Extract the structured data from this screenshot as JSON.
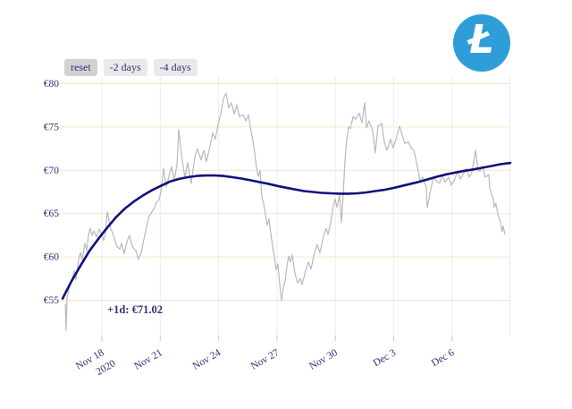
{
  "page": {
    "background": "#ffffff",
    "text_color": "#30307c"
  },
  "logo": {
    "symbol": "Ł",
    "bg_color": "#2f9ed8",
    "fg_color": "#ffffff"
  },
  "toolbar": {
    "buttons": [
      {
        "name": "reset",
        "label": "reset",
        "active": true
      },
      {
        "name": "back-2-days",
        "label": "-2 days",
        "active": false
      },
      {
        "name": "back-4-days",
        "label": "-4 days",
        "active": false
      }
    ]
  },
  "chart_data": {
    "type": "line",
    "title": "",
    "xlabel": "",
    "ylabel": "",
    "currency": "EUR",
    "annotation": "+1d: €71.02",
    "x_unit": "days since 2020-11-16",
    "ylim": [
      51,
      81
    ],
    "grid": {
      "h_color": "#fbe3ca",
      "v_color": "#ededed",
      "tick_color": "#c9c9c9"
    },
    "y_ticks": [
      {
        "value": 80,
        "label": "€80"
      },
      {
        "value": 75,
        "label": "€75"
      },
      {
        "value": 70,
        "label": "€70"
      },
      {
        "value": 65,
        "label": "€65"
      },
      {
        "value": 60,
        "label": "€60"
      },
      {
        "value": 55,
        "label": "€55"
      }
    ],
    "x_ticks": [
      {
        "day": 2,
        "label": "Nov 18",
        "sublabel": "2020"
      },
      {
        "day": 5,
        "label": "Nov 21"
      },
      {
        "day": 8,
        "label": "Nov 24"
      },
      {
        "day": 11,
        "label": "Nov 27"
      },
      {
        "day": 14,
        "label": "Nov 30"
      },
      {
        "day": 17,
        "label": "Dec 3"
      },
      {
        "day": 20,
        "label": "Dec 6"
      }
    ],
    "series": [
      {
        "name": "price",
        "color": "#b9b9b9",
        "width": 1.2,
        "points": [
          [
            0.12,
            54.5
          ],
          [
            0.16,
            51.5
          ],
          [
            0.21,
            55.3
          ],
          [
            0.35,
            56.7
          ],
          [
            0.48,
            57.6
          ],
          [
            0.58,
            58.4
          ],
          [
            0.67,
            57.4
          ],
          [
            0.81,
            59.8
          ],
          [
            0.9,
            60.5
          ],
          [
            0.99,
            59.7
          ],
          [
            1.13,
            61.6
          ],
          [
            1.22,
            60.7
          ],
          [
            1.31,
            62.5
          ],
          [
            1.4,
            63.3
          ],
          [
            1.49,
            62.5
          ],
          [
            1.59,
            63.0
          ],
          [
            1.72,
            62.3
          ],
          [
            1.86,
            63.2
          ],
          [
            2.0,
            62.6
          ],
          [
            2.09,
            61.9
          ],
          [
            2.18,
            62.7
          ],
          [
            2.28,
            65.2
          ],
          [
            2.37,
            64.2
          ],
          [
            2.46,
            63.2
          ],
          [
            2.55,
            62.8
          ],
          [
            2.69,
            61.8
          ],
          [
            2.78,
            61.2
          ],
          [
            2.92,
            60.9
          ],
          [
            3.01,
            61.6
          ],
          [
            3.15,
            60.4
          ],
          [
            3.29,
            61.8
          ],
          [
            3.42,
            62.5
          ],
          [
            3.56,
            61.2
          ],
          [
            3.75,
            60.7
          ],
          [
            3.88,
            59.7
          ],
          [
            4.02,
            60.5
          ],
          [
            4.2,
            62.5
          ],
          [
            4.34,
            63.9
          ],
          [
            4.43,
            64.7
          ],
          [
            4.57,
            65.2
          ],
          [
            4.71,
            65.7
          ],
          [
            4.8,
            66.3
          ],
          [
            4.94,
            66.6
          ],
          [
            5.03,
            67.5
          ],
          [
            5.17,
            70.2
          ],
          [
            5.31,
            68.1
          ],
          [
            5.44,
            69.3
          ],
          [
            5.58,
            70.4
          ],
          [
            5.72,
            68.9
          ],
          [
            5.86,
            70.6
          ],
          [
            5.95,
            74.7
          ],
          [
            6.09,
            71.8
          ],
          [
            6.27,
            69.1
          ],
          [
            6.41,
            70.9
          ],
          [
            6.59,
            68.5
          ],
          [
            6.78,
            71.6
          ],
          [
            6.91,
            72.5
          ],
          [
            7.1,
            71.2
          ],
          [
            7.24,
            72.3
          ],
          [
            7.37,
            71.0
          ],
          [
            7.56,
            72.8
          ],
          [
            7.7,
            74.3
          ],
          [
            7.83,
            73.6
          ],
          [
            7.97,
            75.3
          ],
          [
            8.11,
            76.5
          ],
          [
            8.25,
            78.3
          ],
          [
            8.38,
            78.9
          ],
          [
            8.52,
            77.2
          ],
          [
            8.66,
            77.8
          ],
          [
            8.8,
            76.5
          ],
          [
            8.94,
            77.5
          ],
          [
            9.07,
            76.2
          ],
          [
            9.26,
            76.4
          ],
          [
            9.4,
            75.7
          ],
          [
            9.53,
            76.4
          ],
          [
            9.67,
            74.5
          ],
          [
            9.81,
            72.8
          ],
          [
            9.95,
            70.3
          ],
          [
            10.04,
            69.3
          ],
          [
            10.13,
            70.0
          ],
          [
            10.22,
            67.0
          ],
          [
            10.31,
            66.2
          ],
          [
            10.41,
            64.8
          ],
          [
            10.5,
            63.7
          ],
          [
            10.59,
            64.4
          ],
          [
            10.68,
            62.7
          ],
          [
            10.77,
            61.3
          ],
          [
            10.87,
            59.9
          ],
          [
            10.96,
            58.5
          ],
          [
            11.05,
            59.2
          ],
          [
            11.14,
            56.8
          ],
          [
            11.23,
            55.0
          ],
          [
            11.32,
            56.4
          ],
          [
            11.42,
            57.2
          ],
          [
            11.51,
            58.9
          ],
          [
            11.6,
            60.1
          ],
          [
            11.69,
            59.4
          ],
          [
            11.78,
            60.3
          ],
          [
            11.92,
            58.1
          ],
          [
            12.06,
            57.0
          ],
          [
            12.2,
            57.5
          ],
          [
            12.29,
            56.8
          ],
          [
            12.47,
            58.4
          ],
          [
            12.61,
            59.4
          ],
          [
            12.75,
            58.6
          ],
          [
            12.93,
            60.5
          ],
          [
            13.07,
            61.4
          ],
          [
            13.21,
            60.5
          ],
          [
            13.39,
            62.4
          ],
          [
            13.53,
            63.3
          ],
          [
            13.62,
            62.6
          ],
          [
            13.76,
            64.0
          ],
          [
            13.9,
            66.0
          ],
          [
            13.99,
            66.7
          ],
          [
            14.08,
            65.7
          ],
          [
            14.22,
            67.1
          ],
          [
            14.31,
            64.0
          ],
          [
            14.4,
            67.0
          ],
          [
            14.49,
            71.0
          ],
          [
            14.58,
            73.5
          ],
          [
            14.68,
            75.0
          ],
          [
            14.77,
            74.8
          ],
          [
            14.91,
            76.2
          ],
          [
            15.04,
            75.9
          ],
          [
            15.23,
            76.6
          ],
          [
            15.37,
            75.5
          ],
          [
            15.5,
            77.8
          ],
          [
            15.6,
            74.9
          ],
          [
            15.73,
            75.7
          ],
          [
            15.92,
            74.6
          ],
          [
            16.05,
            72.0
          ],
          [
            16.19,
            75.1
          ],
          [
            16.38,
            75.4
          ],
          [
            16.51,
            73.3
          ],
          [
            16.65,
            72.3
          ],
          [
            16.84,
            73.6
          ],
          [
            16.97,
            72.6
          ],
          [
            17.11,
            73.5
          ],
          [
            17.3,
            75.1
          ],
          [
            17.43,
            74.1
          ],
          [
            17.57,
            73.1
          ],
          [
            17.75,
            73.3
          ],
          [
            17.89,
            72.6
          ],
          [
            18.03,
            72.3
          ],
          [
            18.21,
            70.5
          ],
          [
            18.35,
            68.8
          ],
          [
            18.49,
            69.2
          ],
          [
            18.67,
            68.1
          ],
          [
            18.72,
            65.7
          ],
          [
            18.81,
            66.7
          ],
          [
            18.9,
            67.8
          ],
          [
            19.04,
            69.2
          ],
          [
            19.18,
            68.8
          ],
          [
            19.36,
            68.5
          ],
          [
            19.5,
            69.5
          ],
          [
            19.64,
            68.6
          ],
          [
            19.82,
            69.2
          ],
          [
            19.96,
            68.3
          ],
          [
            20.1,
            68.8
          ],
          [
            20.28,
            69.9
          ],
          [
            20.42,
            69.0
          ],
          [
            20.56,
            69.5
          ],
          [
            20.74,
            70.2
          ],
          [
            20.88,
            69.2
          ],
          [
            21.01,
            69.7
          ],
          [
            21.2,
            72.3
          ],
          [
            21.34,
            70.0
          ],
          [
            21.43,
            69.9
          ],
          [
            21.57,
            70.5
          ],
          [
            21.7,
            69.2
          ],
          [
            21.89,
            69.5
          ],
          [
            21.93,
            67.9
          ],
          [
            22.12,
            66.7
          ],
          [
            22.16,
            65.7
          ],
          [
            22.25,
            66.2
          ],
          [
            22.35,
            65.0
          ],
          [
            22.48,
            64.0
          ],
          [
            22.57,
            62.9
          ],
          [
            22.62,
            63.6
          ],
          [
            22.71,
            62.6
          ]
        ]
      },
      {
        "name": "trend",
        "color": "#10107e",
        "width": 2.6,
        "points": [
          [
            -0.02,
            55.2
          ],
          [
            0.44,
            57.2
          ],
          [
            0.9,
            59.0
          ],
          [
            1.36,
            60.7
          ],
          [
            1.82,
            62.1
          ],
          [
            2.28,
            63.4
          ],
          [
            2.73,
            64.6
          ],
          [
            3.19,
            65.6
          ],
          [
            3.65,
            66.4
          ],
          [
            4.11,
            67.1
          ],
          [
            4.57,
            67.7
          ],
          [
            5.03,
            68.2
          ],
          [
            5.49,
            68.7
          ],
          [
            5.95,
            69.0
          ],
          [
            6.41,
            69.2
          ],
          [
            6.87,
            69.35
          ],
          [
            7.33,
            69.4
          ],
          [
            7.79,
            69.4
          ],
          [
            8.25,
            69.35
          ],
          [
            8.71,
            69.2
          ],
          [
            9.17,
            69.05
          ],
          [
            9.63,
            68.85
          ],
          [
            10.08,
            68.65
          ],
          [
            10.54,
            68.45
          ],
          [
            11.0,
            68.2
          ],
          [
            11.46,
            68.0
          ],
          [
            11.92,
            67.8
          ],
          [
            12.38,
            67.6
          ],
          [
            12.84,
            67.5
          ],
          [
            13.3,
            67.4
          ],
          [
            13.76,
            67.35
          ],
          [
            14.22,
            67.3
          ],
          [
            14.68,
            67.3
          ],
          [
            15.14,
            67.35
          ],
          [
            15.6,
            67.45
          ],
          [
            16.05,
            67.6
          ],
          [
            16.51,
            67.75
          ],
          [
            16.97,
            67.95
          ],
          [
            17.43,
            68.2
          ],
          [
            17.89,
            68.45
          ],
          [
            18.35,
            68.7
          ],
          [
            18.81,
            69.0
          ],
          [
            19.27,
            69.3
          ],
          [
            19.73,
            69.55
          ],
          [
            20.19,
            69.75
          ],
          [
            20.65,
            69.95
          ],
          [
            21.1,
            70.1
          ],
          [
            21.56,
            70.3
          ],
          [
            22.02,
            70.5
          ],
          [
            22.48,
            70.7
          ],
          [
            22.99,
            70.85
          ]
        ]
      }
    ]
  }
}
